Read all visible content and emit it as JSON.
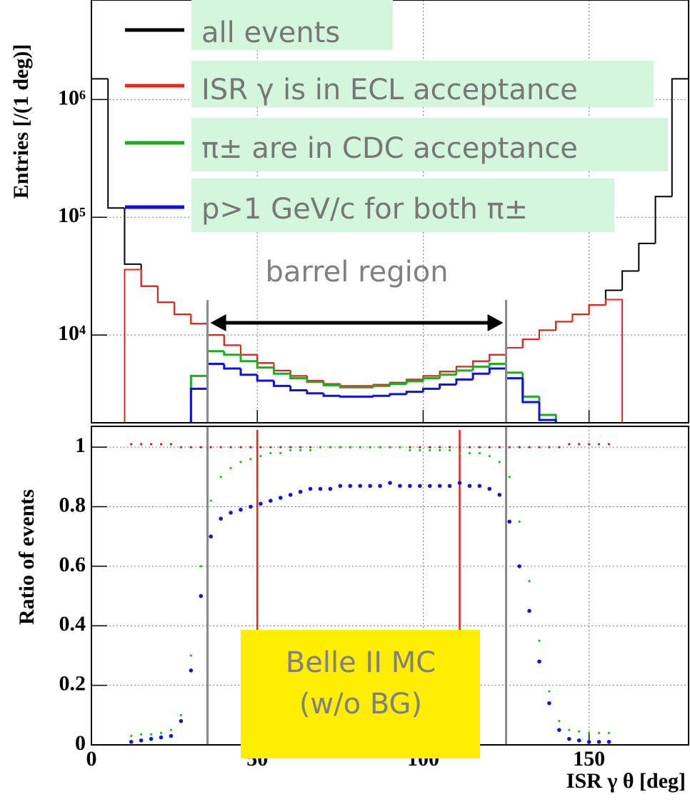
{
  "chart_data": [
    {
      "type": "histogram",
      "ylabel": "Entries [/(1 deg)]",
      "bins": [
        0,
        5,
        10,
        15,
        20,
        25,
        30,
        35,
        40,
        45,
        50,
        55,
        60,
        65,
        70,
        75,
        80,
        85,
        90,
        95,
        100,
        105,
        110,
        115,
        120,
        125,
        130,
        135,
        140,
        145,
        150,
        155,
        160,
        165,
        170,
        175,
        180
      ],
      "series": [
        {
          "name": "all events",
          "color": "#000000",
          "values": [
            1500000,
            120000,
            40000,
            26000,
            19000,
            15000,
            12500,
            10000,
            8200,
            6800,
            5800,
            5000,
            4500,
            4100,
            3850,
            3700,
            3700,
            3800,
            3950,
            4200,
            4500,
            4900,
            5400,
            6000,
            6800,
            7800,
            9200,
            11000,
            13000,
            15000,
            18000,
            24000,
            35000,
            60000,
            150000,
            1500000
          ]
        },
        {
          "name": "ISR γ is in ECL acceptance",
          "color": "#e8241c",
          "values": [
            null,
            null,
            36000,
            26000,
            19000,
            15000,
            12500,
            10000,
            8200,
            6800,
            5800,
            5000,
            4500,
            4100,
            3850,
            3700,
            3700,
            3800,
            3950,
            4200,
            4500,
            4900,
            5400,
            6000,
            6800,
            7800,
            9200,
            11000,
            13000,
            15000,
            18000,
            20000,
            null,
            null,
            null,
            null
          ]
        },
        {
          "name": "π± are in CDC acceptance",
          "color": "#22aa22",
          "values": [
            null,
            null,
            null,
            null,
            null,
            null,
            4500,
            7300,
            6800,
            6000,
            5300,
            4700,
            4300,
            4000,
            3750,
            3600,
            3600,
            3700,
            3850,
            4050,
            4300,
            4600,
            5000,
            5400,
            5700,
            4800,
            3000,
            2100,
            null,
            null,
            null,
            null,
            null,
            null,
            null,
            null
          ]
        },
        {
          "name": "p>1 GeV/c for both π±",
          "color": "#1010e0",
          "values": [
            null,
            null,
            null,
            null,
            null,
            null,
            3500,
            5700,
            5200,
            4600,
            4100,
            3700,
            3400,
            3200,
            3050,
            3000,
            3000,
            3050,
            3150,
            3300,
            3500,
            3800,
            4200,
            4700,
            5200,
            4300,
            2700,
            1900,
            null,
            null,
            null,
            null,
            null,
            null,
            null,
            null
          ]
        }
      ],
      "xlim": [
        0,
        180
      ],
      "xticks": [
        0,
        50,
        100,
        150
      ],
      "ylim": [
        1800,
        7000000
      ],
      "log_scale": true,
      "yticks": [
        {
          "value": 10000,
          "label": "10⁴"
        },
        {
          "value": 100000,
          "label": "10⁵"
        },
        {
          "value": 1000000,
          "label": "10⁶"
        }
      ],
      "grid": true,
      "annotation": "barrel region",
      "region": [
        35,
        125
      ]
    },
    {
      "type": "scatter",
      "ylabel": "Ratio of events",
      "xlabel": "ISR γ θ [deg]",
      "x": [
        12,
        15,
        18,
        21,
        24,
        27,
        30,
        33,
        36,
        39,
        42,
        45,
        48,
        51,
        54,
        57,
        60,
        63,
        66,
        69,
        72,
        75,
        78,
        81,
        84,
        87,
        90,
        93,
        96,
        99,
        102,
        105,
        108,
        111,
        114,
        117,
        120,
        123,
        126,
        129,
        132,
        135,
        138,
        141,
        144,
        147,
        150,
        153,
        156
      ],
      "series": [
        {
          "color": "#c0201a",
          "values": [
            1.01,
            1.01,
            1.01,
            1.01,
            1.01,
            1,
            1,
            1,
            1,
            1,
            1,
            1,
            1,
            1,
            1,
            1,
            1,
            1,
            1,
            1,
            1,
            1,
            1,
            1,
            1,
            1,
            1,
            1,
            1,
            1,
            1,
            1,
            1,
            1,
            1,
            1,
            1,
            1,
            1,
            1,
            1,
            1,
            1,
            1,
            1.01,
            1.01,
            1.01,
            1.01,
            1.01
          ]
        },
        {
          "color": "#22bb22",
          "values": [
            0.03,
            0.035,
            0.035,
            0.04,
            0.05,
            0.1,
            0.3,
            0.6,
            0.82,
            0.9,
            0.93,
            0.95,
            0.96,
            0.97,
            0.98,
            0.98,
            0.99,
            0.99,
            0.99,
            1,
            1,
            1,
            1,
            1,
            1,
            1,
            1,
            1,
            0.99,
            0.99,
            0.99,
            0.99,
            0.99,
            0.98,
            0.98,
            0.98,
            0.97,
            0.95,
            0.9,
            0.75,
            0.55,
            0.35,
            0.18,
            0.08,
            0.05,
            0.045,
            0.04,
            0.04,
            0.04
          ]
        },
        {
          "color": "#1515d0",
          "values": [
            0.01,
            0.015,
            0.02,
            0.025,
            0.03,
            0.08,
            0.25,
            0.5,
            0.7,
            0.76,
            0.78,
            0.79,
            0.8,
            0.81,
            0.82,
            0.83,
            0.84,
            0.85,
            0.86,
            0.86,
            0.86,
            0.87,
            0.87,
            0.87,
            0.87,
            0.87,
            0.88,
            0.87,
            0.87,
            0.87,
            0.87,
            0.87,
            0.87,
            0.88,
            0.87,
            0.87,
            0.86,
            0.84,
            0.75,
            0.6,
            0.45,
            0.28,
            0.14,
            0.05,
            0.02,
            0.015,
            0.01,
            0.01,
            0.01
          ]
        }
      ],
      "xlim": [
        0,
        180
      ],
      "xticks": [
        0,
        50,
        100,
        150
      ],
      "ylim": [
        0,
        1.07
      ],
      "yticks": [
        0,
        0.2,
        0.4,
        0.6,
        0.8,
        1
      ],
      "grid": true,
      "vlines_grey": [
        35,
        125
      ],
      "vlines_red": [
        50,
        111
      ],
      "annotations": [
        "Belle II MC",
        "(w/o BG)"
      ]
    }
  ]
}
